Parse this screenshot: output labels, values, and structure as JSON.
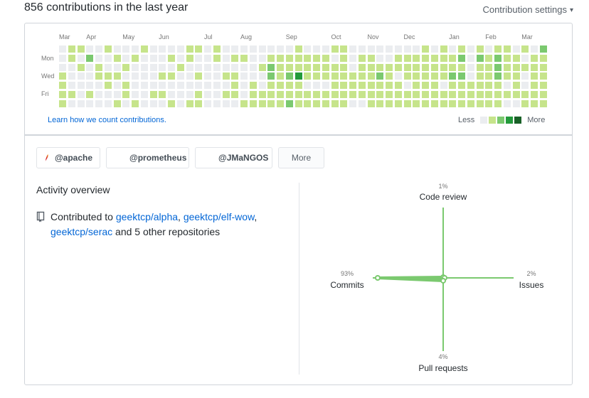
{
  "header": {
    "title": "856 contributions in the last year",
    "settings_label": "Contribution settings"
  },
  "calendar": {
    "months": [
      "Mar",
      "Apr",
      "May",
      "Jun",
      "Jul",
      "Aug",
      "Sep",
      "Oct",
      "Nov",
      "Dec",
      "Jan",
      "Feb",
      "Mar"
    ],
    "weekday_labels": [
      "Mon",
      "Wed",
      "Fri"
    ],
    "palette": [
      "#ebedf0",
      "#c6e48b",
      "#7bc96f",
      "#239a3b",
      "#196127"
    ],
    "weeks": [
      "0001111",
      "1100010",
      "1010000",
      "0200010",
      "0011000",
      "1001100",
      "0101001",
      "0010110",
      "0100001",
      "1000000",
      "0000010",
      "0001010",
      "0101001",
      "0010000",
      "1100001",
      "1001011",
      "0000000",
      "1100000",
      "0001010",
      "0101110",
      "0100001",
      "0000111",
      "0010011",
      "0122111",
      "0111111",
      "0112112",
      "1113111",
      "0111011",
      "0111011",
      "0111011",
      "1011111",
      "1111111",
      "0001110",
      "0111110",
      "0111111",
      "0012111",
      "0011111",
      "0110111",
      "0111011",
      "0111111",
      "1111111",
      "0111111",
      "1111011",
      "0112111",
      "1212111",
      "0000111",
      "1211111",
      "0111111",
      "1222111",
      "1111010",
      "0111110",
      "1010011",
      "0111111",
      "2111111"
    ],
    "learn_link": "Learn how we count contributions.",
    "legend_less": "Less",
    "legend_more": "More"
  },
  "orgs": [
    {
      "label": "@apache",
      "icon": "apache-feather-icon"
    },
    {
      "label": "@prometheus",
      "icon": ""
    },
    {
      "label": "@JMaNGOS",
      "icon": ""
    }
  ],
  "orgs_more_label": "More",
  "overview": {
    "title": "Activity overview",
    "prefix": "Contributed to ",
    "repo1": "geektcp/alpha",
    "sep1": ", ",
    "repo2": "geektcp/elf-wow",
    "sep2": ",",
    "repo3": "geektcp/serac",
    "suffix": " and 5 other repositories"
  },
  "radar": {
    "code_review": {
      "label": "Code review",
      "pct": "1%",
      "value": 1
    },
    "issues": {
      "label": "Issues",
      "pct": "2%",
      "value": 2
    },
    "pull_requests": {
      "label": "Pull requests",
      "pct": "4%",
      "value": 4
    },
    "commits": {
      "label": "Commits",
      "pct": "93%",
      "value": 93
    },
    "color": "#7bc96f"
  }
}
